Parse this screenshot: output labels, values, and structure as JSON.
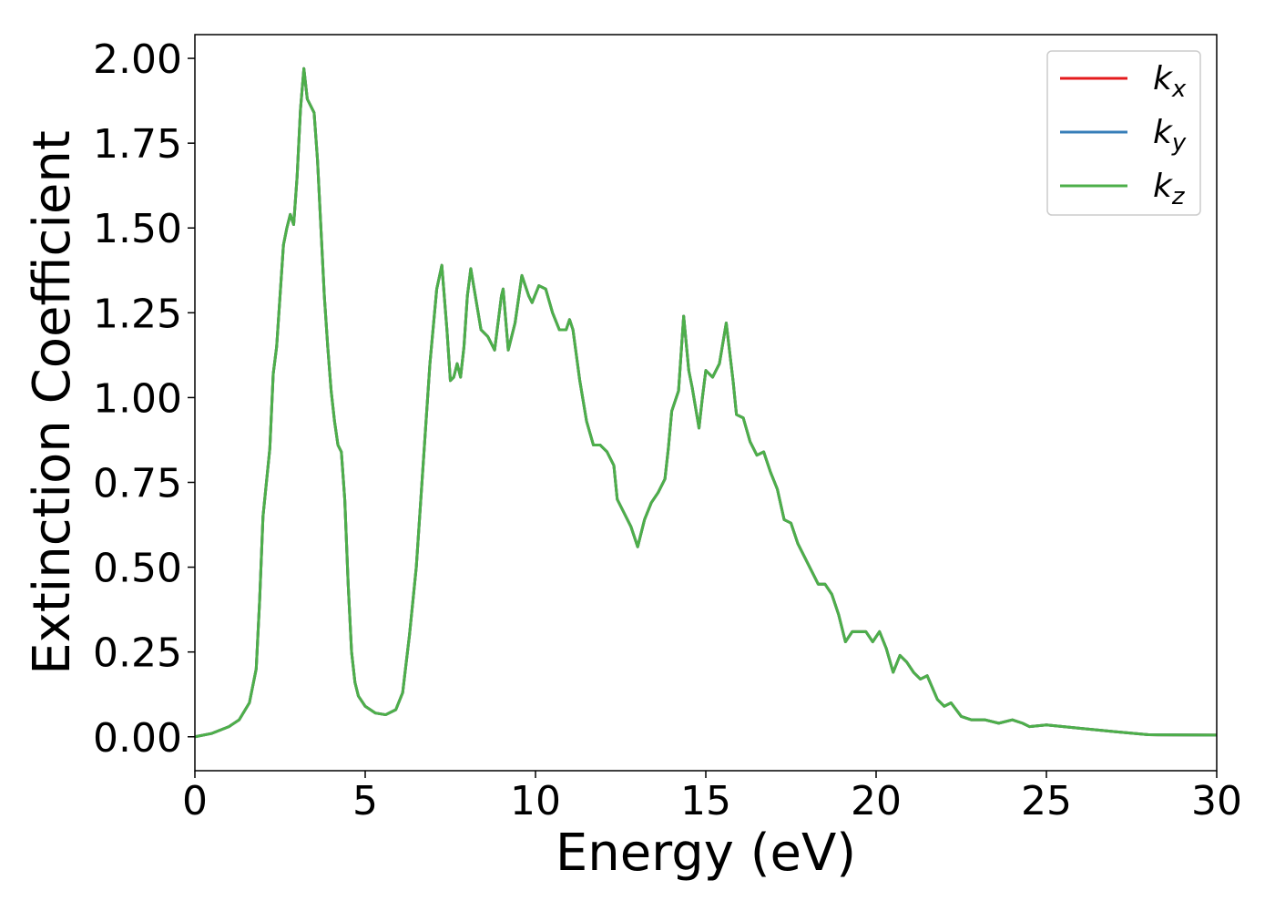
{
  "chart_data": {
    "type": "line",
    "xlabel": "Energy (eV)",
    "ylabel": "Extinction Coefficient",
    "x": [
      0,
      0.5,
      1.0,
      1.3,
      1.6,
      1.8,
      1.9,
      2.0,
      2.1,
      2.2,
      2.3,
      2.4,
      2.5,
      2.6,
      2.7,
      2.8,
      2.9,
      3.0,
      3.1,
      3.2,
      3.3,
      3.4,
      3.5,
      3.6,
      3.7,
      3.8,
      3.9,
      4.0,
      4.1,
      4.2,
      4.3,
      4.4,
      4.5,
      4.6,
      4.7,
      4.8,
      5.0,
      5.3,
      5.6,
      5.9,
      6.1,
      6.3,
      6.5,
      6.7,
      6.9,
      7.1,
      7.25,
      7.4,
      7.5,
      7.6,
      7.7,
      7.8,
      7.9,
      8.0,
      8.1,
      8.2,
      8.4,
      8.6,
      8.8,
      9.0,
      9.05,
      9.2,
      9.4,
      9.6,
      9.8,
      9.9,
      10.1,
      10.3,
      10.5,
      10.7,
      10.9,
      11.0,
      11.1,
      11.3,
      11.5,
      11.7,
      11.9,
      12.1,
      12.3,
      12.4,
      12.6,
      12.8,
      13.0,
      13.2,
      13.4,
      13.6,
      13.8,
      13.9,
      14.0,
      14.2,
      14.35,
      14.5,
      14.6,
      14.8,
      14.9,
      15.0,
      15.2,
      15.4,
      15.6,
      15.8,
      15.9,
      16.1,
      16.3,
      16.5,
      16.7,
      16.9,
      17.1,
      17.3,
      17.5,
      17.7,
      17.9,
      18.1,
      18.3,
      18.5,
      18.7,
      18.9,
      19.1,
      19.3,
      19.5,
      19.7,
      19.9,
      20.1,
      20.3,
      20.5,
      20.7,
      20.9,
      21.1,
      21.3,
      21.5,
      21.8,
      22.0,
      22.2,
      22.5,
      22.8,
      23.2,
      23.6,
      24.0,
      24.3,
      24.5,
      25,
      26,
      27,
      28,
      30
    ],
    "series": [
      {
        "name": "k",
        "subscript": "x",
        "color": "#e41a1c",
        "values": [
          0,
          0.01,
          0.03,
          0.05,
          0.1,
          0.2,
          0.4,
          0.65,
          0.75,
          0.85,
          1.07,
          1.15,
          1.3,
          1.45,
          1.5,
          1.54,
          1.51,
          1.65,
          1.85,
          1.97,
          1.88,
          1.86,
          1.84,
          1.7,
          1.5,
          1.3,
          1.15,
          1.02,
          0.93,
          0.86,
          0.84,
          0.7,
          0.45,
          0.25,
          0.16,
          0.12,
          0.09,
          0.07,
          0.065,
          0.08,
          0.13,
          0.3,
          0.5,
          0.8,
          1.1,
          1.32,
          1.39,
          1.2,
          1.05,
          1.06,
          1.1,
          1.06,
          1.15,
          1.3,
          1.38,
          1.32,
          1.2,
          1.18,
          1.14,
          1.3,
          1.32,
          1.14,
          1.22,
          1.36,
          1.3,
          1.28,
          1.33,
          1.32,
          1.25,
          1.2,
          1.2,
          1.23,
          1.2,
          1.05,
          0.93,
          0.86,
          0.86,
          0.84,
          0.8,
          0.7,
          0.66,
          0.62,
          0.56,
          0.64,
          0.69,
          0.72,
          0.76,
          0.85,
          0.96,
          1.02,
          1.24,
          1.08,
          1.03,
          0.91,
          1.0,
          1.08,
          1.06,
          1.1,
          1.22,
          1.05,
          0.95,
          0.94,
          0.87,
          0.83,
          0.84,
          0.78,
          0.73,
          0.64,
          0.63,
          0.57,
          0.53,
          0.49,
          0.45,
          0.45,
          0.42,
          0.36,
          0.28,
          0.31,
          0.31,
          0.31,
          0.28,
          0.31,
          0.26,
          0.19,
          0.24,
          0.22,
          0.19,
          0.17,
          0.18,
          0.11,
          0.09,
          0.1,
          0.06,
          0.05,
          0.05,
          0.04,
          0.05,
          0.04,
          0.03,
          0.035,
          0.025,
          0.015,
          0.006,
          0.005
        ]
      },
      {
        "name": "k",
        "subscript": "y",
        "color": "#377eb8",
        "values": [
          0,
          0.01,
          0.03,
          0.05,
          0.1,
          0.2,
          0.4,
          0.65,
          0.75,
          0.85,
          1.07,
          1.15,
          1.3,
          1.45,
          1.5,
          1.54,
          1.51,
          1.65,
          1.85,
          1.97,
          1.88,
          1.86,
          1.84,
          1.7,
          1.5,
          1.3,
          1.15,
          1.02,
          0.93,
          0.86,
          0.84,
          0.7,
          0.45,
          0.25,
          0.16,
          0.12,
          0.09,
          0.07,
          0.065,
          0.08,
          0.13,
          0.3,
          0.5,
          0.8,
          1.1,
          1.32,
          1.39,
          1.2,
          1.05,
          1.06,
          1.1,
          1.06,
          1.15,
          1.3,
          1.38,
          1.32,
          1.2,
          1.18,
          1.14,
          1.3,
          1.32,
          1.14,
          1.22,
          1.36,
          1.3,
          1.28,
          1.33,
          1.32,
          1.25,
          1.2,
          1.2,
          1.23,
          1.2,
          1.05,
          0.93,
          0.86,
          0.86,
          0.84,
          0.8,
          0.7,
          0.66,
          0.62,
          0.56,
          0.64,
          0.69,
          0.72,
          0.76,
          0.85,
          0.96,
          1.02,
          1.24,
          1.08,
          1.03,
          0.91,
          1.0,
          1.08,
          1.06,
          1.1,
          1.22,
          1.05,
          0.95,
          0.94,
          0.87,
          0.83,
          0.84,
          0.78,
          0.73,
          0.64,
          0.63,
          0.57,
          0.53,
          0.49,
          0.45,
          0.45,
          0.42,
          0.36,
          0.28,
          0.31,
          0.31,
          0.31,
          0.28,
          0.31,
          0.26,
          0.19,
          0.24,
          0.22,
          0.19,
          0.17,
          0.18,
          0.11,
          0.09,
          0.1,
          0.06,
          0.05,
          0.05,
          0.04,
          0.05,
          0.04,
          0.03,
          0.035,
          0.025,
          0.015,
          0.006,
          0.005
        ]
      },
      {
        "name": "k",
        "subscript": "z",
        "color": "#4daf4a",
        "values": [
          0,
          0.01,
          0.03,
          0.05,
          0.1,
          0.2,
          0.4,
          0.65,
          0.75,
          0.85,
          1.07,
          1.15,
          1.3,
          1.45,
          1.5,
          1.54,
          1.51,
          1.65,
          1.85,
          1.97,
          1.88,
          1.86,
          1.84,
          1.7,
          1.5,
          1.3,
          1.15,
          1.02,
          0.93,
          0.86,
          0.84,
          0.7,
          0.45,
          0.25,
          0.16,
          0.12,
          0.09,
          0.07,
          0.065,
          0.08,
          0.13,
          0.3,
          0.5,
          0.8,
          1.1,
          1.32,
          1.39,
          1.2,
          1.05,
          1.06,
          1.1,
          1.06,
          1.15,
          1.3,
          1.38,
          1.32,
          1.2,
          1.18,
          1.14,
          1.3,
          1.32,
          1.14,
          1.22,
          1.36,
          1.3,
          1.28,
          1.33,
          1.32,
          1.25,
          1.2,
          1.2,
          1.23,
          1.2,
          1.05,
          0.93,
          0.86,
          0.86,
          0.84,
          0.8,
          0.7,
          0.66,
          0.62,
          0.56,
          0.64,
          0.69,
          0.72,
          0.76,
          0.85,
          0.96,
          1.02,
          1.24,
          1.08,
          1.03,
          0.91,
          1.0,
          1.08,
          1.06,
          1.1,
          1.22,
          1.05,
          0.95,
          0.94,
          0.87,
          0.83,
          0.84,
          0.78,
          0.73,
          0.64,
          0.63,
          0.57,
          0.53,
          0.49,
          0.45,
          0.45,
          0.42,
          0.36,
          0.28,
          0.31,
          0.31,
          0.31,
          0.28,
          0.31,
          0.26,
          0.19,
          0.24,
          0.22,
          0.19,
          0.17,
          0.18,
          0.11,
          0.09,
          0.1,
          0.06,
          0.05,
          0.05,
          0.04,
          0.05,
          0.04,
          0.03,
          0.035,
          0.025,
          0.015,
          0.006,
          0.005
        ]
      }
    ],
    "xlim": [
      0,
      30
    ],
    "xticks": [
      0,
      5,
      10,
      15,
      20,
      25,
      30
    ],
    "ylim": [
      -0.1,
      2.07
    ],
    "yticks": [
      {
        "value": 0,
        "label": "0.00"
      },
      {
        "value": 0.25,
        "label": "0.25"
      },
      {
        "value": 0.5,
        "label": "0.50"
      },
      {
        "value": 0.75,
        "label": "0.75"
      },
      {
        "value": 1,
        "label": "1.00"
      },
      {
        "value": 1.25,
        "label": "1.25"
      },
      {
        "value": 1.5,
        "label": "1.50"
      },
      {
        "value": 1.75,
        "label": "1.75"
      },
      {
        "value": 2,
        "label": "2.00"
      }
    ],
    "grid": false,
    "legend": "upper right"
  }
}
